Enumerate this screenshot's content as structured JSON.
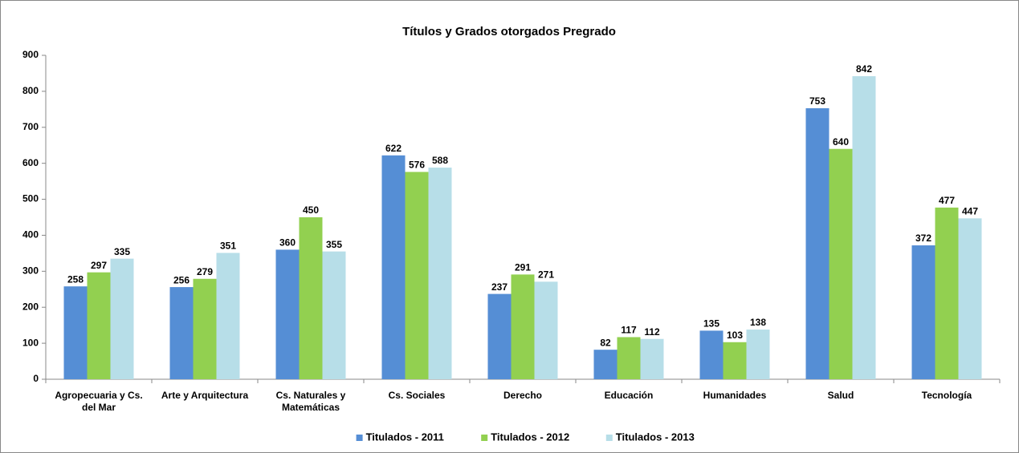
{
  "chart_data": {
    "type": "bar",
    "title": "Títulos y Grados otorgados Pregrado",
    "categories": [
      "Agropecuaria y Cs. del Mar",
      "Arte y Arquitectura",
      "Cs. Naturales y Matemáticas",
      "Cs. Sociales",
      "Derecho",
      "Educación",
      "Humanidades",
      "Salud",
      "Tecnología"
    ],
    "series": [
      {
        "name": "Titulados - 2011",
        "color": "#558ed5",
        "values": [
          258,
          256,
          360,
          622,
          237,
          82,
          135,
          753,
          372
        ]
      },
      {
        "name": "Titulados - 2012",
        "color": "#92d050",
        "values": [
          297,
          279,
          450,
          576,
          291,
          117,
          103,
          640,
          477
        ]
      },
      {
        "name": "Titulados - 2013",
        "color": "#b7dee8",
        "values": [
          335,
          351,
          355,
          588,
          271,
          112,
          138,
          842,
          447
        ]
      }
    ],
    "ylim": [
      0,
      900
    ],
    "yticks": [
      0,
      100,
      200,
      300,
      400,
      500,
      600,
      700,
      800,
      900
    ],
    "grid": false,
    "legend": "bottom"
  }
}
